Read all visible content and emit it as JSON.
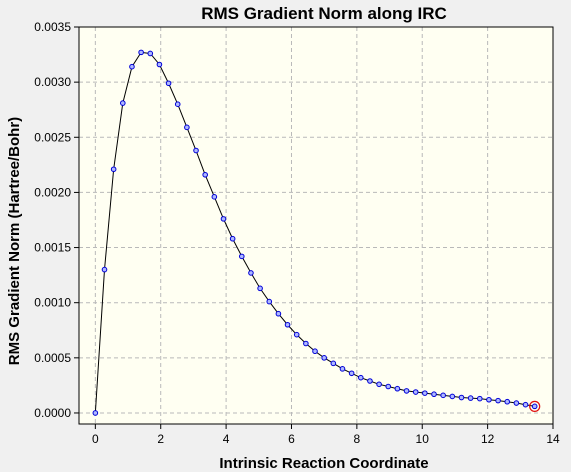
{
  "chart_data": {
    "type": "line",
    "title": "RMS Gradient Norm along IRC",
    "xlabel": "Intrinsic Reaction Coordinate",
    "ylabel": "RMS Gradient Norm (Hartree/Bohr)",
    "xlim": [
      -0.5,
      14
    ],
    "ylim": [
      -0.0001,
      0.0035
    ],
    "xticks": [
      0,
      2,
      4,
      6,
      8,
      10,
      12,
      14
    ],
    "yticks": [
      0.0,
      0.0005,
      0.001,
      0.0015,
      0.002,
      0.0025,
      0.003,
      0.0035
    ],
    "xtick_labels": [
      "0",
      "2",
      "4",
      "6",
      "8",
      "10",
      "12",
      "14"
    ],
    "ytick_labels": [
      "0.0000",
      "0.0005",
      "0.0010",
      "0.0015",
      "0.0020",
      "0.0025",
      "0.0030",
      "0.0035"
    ],
    "grid": true,
    "plot_background": "#fffff2",
    "line_color": "#000000",
    "marker_edge_color": "#0000d8",
    "marker_face_color": "#aeb8ff",
    "highlight_color": "#e01010",
    "series": [
      {
        "x": [
          0.0,
          0.28,
          0.56,
          0.84,
          1.12,
          1.4,
          1.68,
          1.96,
          2.24,
          2.52,
          2.8,
          3.08,
          3.36,
          3.64,
          3.92,
          4.2,
          4.48,
          4.76,
          5.04,
          5.32,
          5.6,
          5.88,
          6.16,
          6.44,
          6.72,
          7.0,
          7.28,
          7.56,
          7.84,
          8.12,
          8.4,
          8.68,
          8.96,
          9.24,
          9.52,
          9.8,
          10.08,
          10.36,
          10.64,
          10.92,
          11.2,
          11.48,
          11.76,
          12.04,
          12.32,
          12.6,
          12.88,
          13.16,
          13.44
        ],
        "y": [
          0.0,
          0.0013,
          0.00221,
          0.00281,
          0.00314,
          0.00327,
          0.00326,
          0.00316,
          0.00299,
          0.0028,
          0.00259,
          0.00238,
          0.00216,
          0.00196,
          0.00176,
          0.00158,
          0.00142,
          0.00127,
          0.00113,
          0.00101,
          0.0009,
          0.0008,
          0.00071,
          0.00063,
          0.00056,
          0.0005,
          0.00045,
          0.0004,
          0.00036,
          0.00032,
          0.00029,
          0.00026,
          0.00024,
          0.00022,
          0.0002,
          0.00019,
          0.00018,
          0.00017,
          0.00016,
          0.00015,
          0.00014,
          0.000135,
          0.00013,
          0.00012,
          0.000112,
          0.000102,
          9e-05,
          7.5e-05,
          6e-05
        ],
        "highlight_index": 48
      }
    ]
  }
}
